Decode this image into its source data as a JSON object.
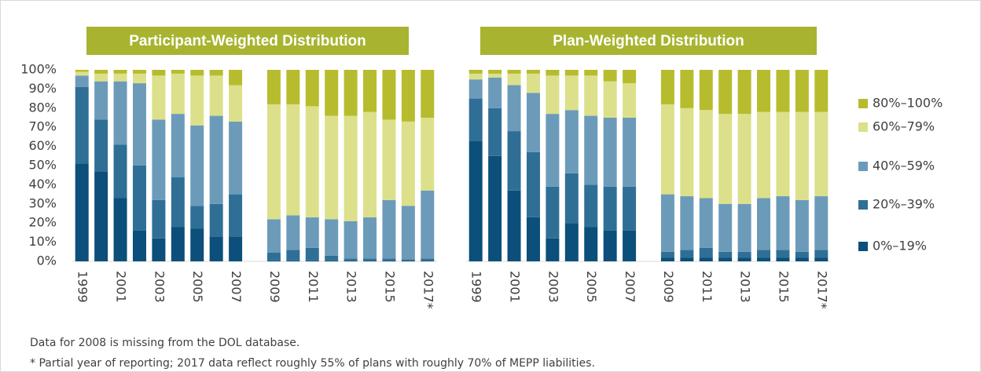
{
  "chart_data": [
    {
      "type": "bar",
      "stacked": true,
      "title": "Participant-Weighted Distribution",
      "categories": [
        "1999",
        null,
        "2001",
        null,
        "2003",
        null,
        "2005",
        null,
        "2007",
        null,
        "2009",
        null,
        "2011",
        null,
        "2013",
        null,
        "2015",
        null,
        "2017*"
      ],
      "series": [
        {
          "name": "0%–19%",
          "color": "#0b4f7a",
          "values": [
            51,
            47,
            33,
            16,
            12,
            18,
            17,
            13,
            13,
            null,
            0.5,
            0.5,
            0.5,
            0.5,
            0.5,
            0.5,
            0.5,
            0.5,
            0.5
          ]
        },
        {
          "name": "20%–39%",
          "color": "#2f6f96",
          "values": [
            40,
            27,
            28,
            34,
            20,
            26,
            12,
            17,
            22,
            null,
            4,
            5.5,
            6.5,
            2.5,
            1,
            1,
            1,
            0.5,
            1
          ]
        },
        {
          "name": "40%–59%",
          "color": "#6c9bba",
          "values": [
            6,
            20,
            33,
            43,
            42,
            33,
            42,
            46,
            38,
            null,
            17.5,
            18,
            16,
            19,
            19.5,
            21.5,
            30.5,
            28,
            35.5
          ]
        },
        {
          "name": "60%–79%",
          "color": "#dce08a",
          "values": [
            2,
            4,
            4,
            5,
            23,
            21,
            26,
            21,
            19,
            null,
            60,
            58,
            58,
            54,
            55,
            55,
            42,
            44,
            38
          ]
        },
        {
          "name": "80%–100%",
          "color": "#b7bc2e",
          "values": [
            1,
            2,
            2,
            2,
            3,
            2,
            3,
            3,
            8,
            null,
            18,
            18,
            19,
            24,
            24,
            22,
            26,
            27,
            25
          ]
        }
      ],
      "ylim": [
        0,
        100
      ],
      "yticks": [
        {
          "value": 0,
          "label": "0%"
        },
        {
          "value": 10,
          "label": "10%"
        },
        {
          "value": 20,
          "label": "20%"
        },
        {
          "value": 30,
          "label": "30%"
        },
        {
          "value": 40,
          "label": "40%"
        },
        {
          "value": 50,
          "label": "50%"
        },
        {
          "value": 60,
          "label": "60%"
        },
        {
          "value": 70,
          "label": "70%"
        },
        {
          "value": 80,
          "label": "80%"
        },
        {
          "value": 90,
          "label": "90%"
        },
        {
          "value": 100,
          "label": "100%"
        }
      ]
    },
    {
      "type": "bar",
      "stacked": true,
      "title": "Plan-Weighted Distribution",
      "categories": [
        "1999",
        null,
        "2001",
        null,
        "2003",
        null,
        "2005",
        null,
        "2007",
        null,
        "2009",
        null,
        "2011",
        null,
        "2013",
        null,
        "2015",
        null,
        "2017*"
      ],
      "series": [
        {
          "name": "0%–19%",
          "color": "#0b4f7a",
          "values": [
            63,
            55,
            37,
            23,
            12,
            20,
            18,
            16,
            16,
            null,
            2,
            2,
            2,
            2,
            2,
            2,
            2,
            2,
            2
          ]
        },
        {
          "name": "20%–39%",
          "color": "#2f6f96",
          "values": [
            22,
            25,
            31,
            34,
            27,
            26,
            22,
            23,
            23,
            null,
            3,
            4,
            5,
            3,
            3,
            4,
            4,
            3,
            4
          ]
        },
        {
          "name": "40%–59%",
          "color": "#6c9bba",
          "values": [
            10,
            16,
            24,
            31,
            38,
            33,
            36,
            36,
            36,
            null,
            30,
            28,
            26,
            25,
            25,
            27,
            28,
            27,
            28
          ]
        },
        {
          "name": "60%–79%",
          "color": "#dce08a",
          "values": [
            3,
            2,
            6,
            10,
            20,
            18,
            21,
            19,
            18,
            null,
            47,
            46,
            46,
            47,
            47,
            45,
            44,
            46,
            44
          ]
        },
        {
          "name": "80%–100%",
          "color": "#b7bc2e",
          "values": [
            2,
            2,
            2,
            2,
            3,
            3,
            3,
            6,
            7,
            null,
            18,
            20,
            21,
            23,
            23,
            22,
            22,
            22,
            22
          ]
        }
      ],
      "ylim": [
        0,
        100
      ]
    }
  ],
  "notes": [
    "Data for 2008 is missing from the DOL database.",
    "* Partial year of reporting; 2017 data reflect roughly 55% of plans with roughly 70% of MEPP liabilities."
  ]
}
